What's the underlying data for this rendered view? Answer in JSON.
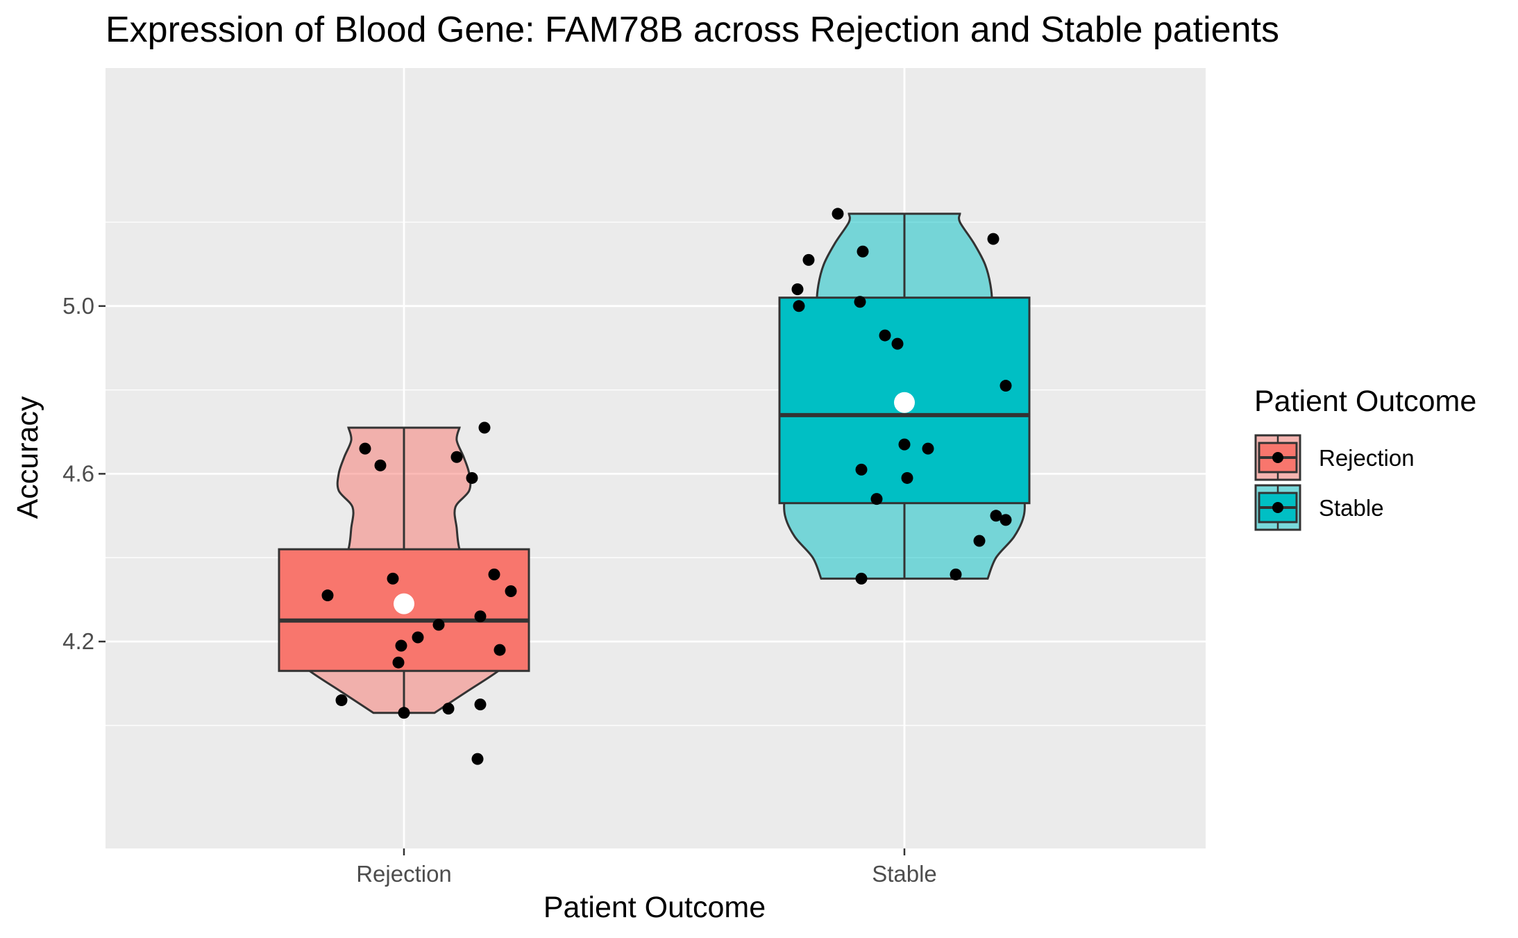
{
  "chart_data": {
    "type": "violin",
    "title": "Expression of Blood Gene:  FAM78B  across Rejection and Stable patients",
    "xlabel": "Patient Outcome",
    "ylabel": "Accuracy",
    "ylim": [
      3.93,
      5.27
    ],
    "yticks": [
      4.2,
      4.6,
      5.0
    ],
    "yticks_labels": [
      "4.2",
      "4.6",
      "5.0"
    ],
    "categories": [
      "Rejection",
      "Stable"
    ],
    "legend": {
      "title": "Patient Outcome",
      "position": "right"
    },
    "grid": true,
    "groups": [
      {
        "name": "Rejection",
        "fill": "#F8766D",
        "violin_range": [
          4.03,
          4.71
        ],
        "box": {
          "q1": 4.13,
          "median": 4.25,
          "q3": 4.42,
          "whisker_low": 4.03,
          "whisker_high": 4.71
        },
        "mean": 4.29,
        "violin_profile": [
          [
            4.03,
            0.22
          ],
          [
            4.08,
            0.45
          ],
          [
            4.13,
            0.68
          ],
          [
            4.18,
            0.86
          ],
          [
            4.22,
            0.89
          ],
          [
            4.27,
            0.79
          ],
          [
            4.32,
            0.61
          ],
          [
            4.37,
            0.46
          ],
          [
            4.42,
            0.4
          ],
          [
            4.47,
            0.38
          ],
          [
            4.52,
            0.37
          ],
          [
            4.56,
            0.47
          ],
          [
            4.6,
            0.47
          ],
          [
            4.64,
            0.43
          ],
          [
            4.68,
            0.38
          ],
          [
            4.71,
            0.4
          ]
        ],
        "points": [
          [
            -0.28,
            4.66
          ],
          [
            -0.17,
            4.62
          ],
          [
            0.38,
            4.64
          ],
          [
            0.58,
            4.71
          ],
          [
            0.49,
            4.59
          ],
          [
            -0.55,
            4.31
          ],
          [
            -0.08,
            4.35
          ],
          [
            0.65,
            4.36
          ],
          [
            0.77,
            4.32
          ],
          [
            0.25,
            4.24
          ],
          [
            0.55,
            4.26
          ],
          [
            0.1,
            4.21
          ],
          [
            -0.02,
            4.19
          ],
          [
            0.69,
            4.18
          ],
          [
            -0.04,
            4.15
          ],
          [
            -0.45,
            4.06
          ],
          [
            0.0,
            4.03
          ],
          [
            0.32,
            4.04
          ],
          [
            0.55,
            4.05
          ],
          [
            0.53,
            3.92
          ]
        ]
      },
      {
        "name": "Stable",
        "fill": "#00BFC4",
        "violin_range": [
          4.35,
          5.22
        ],
        "box": {
          "q1": 4.53,
          "median": 4.74,
          "q3": 5.02,
          "whisker_low": 4.35,
          "whisker_high": 5.22
        },
        "mean": 4.77,
        "violin_profile": [
          [
            4.35,
            0.6
          ],
          [
            4.4,
            0.66
          ],
          [
            4.45,
            0.79
          ],
          [
            4.5,
            0.86
          ],
          [
            4.55,
            0.86
          ],
          [
            4.6,
            0.82
          ],
          [
            4.65,
            0.72
          ],
          [
            4.7,
            0.58
          ],
          [
            4.75,
            0.5
          ],
          [
            4.8,
            0.49
          ],
          [
            4.85,
            0.51
          ],
          [
            4.9,
            0.56
          ],
          [
            4.95,
            0.6
          ],
          [
            5.0,
            0.63
          ],
          [
            5.05,
            0.62
          ],
          [
            5.1,
            0.58
          ],
          [
            5.15,
            0.5
          ],
          [
            5.2,
            0.4
          ],
          [
            5.22,
            0.4
          ]
        ],
        "points": [
          [
            -0.48,
            5.22
          ],
          [
            -0.3,
            5.13
          ],
          [
            -0.69,
            5.11
          ],
          [
            -0.77,
            5.04
          ],
          [
            -0.76,
            5.0
          ],
          [
            -0.32,
            5.01
          ],
          [
            0.64,
            5.16
          ],
          [
            -0.14,
            4.93
          ],
          [
            -0.05,
            4.91
          ],
          [
            0.73,
            4.81
          ],
          [
            0.0,
            4.67
          ],
          [
            0.17,
            4.66
          ],
          [
            -0.31,
            4.61
          ],
          [
            0.02,
            4.59
          ],
          [
            -0.2,
            4.54
          ],
          [
            0.66,
            4.5
          ],
          [
            0.73,
            4.49
          ],
          [
            0.54,
            4.44
          ],
          [
            0.37,
            4.36
          ],
          [
            -0.31,
            4.35
          ]
        ]
      }
    ]
  }
}
